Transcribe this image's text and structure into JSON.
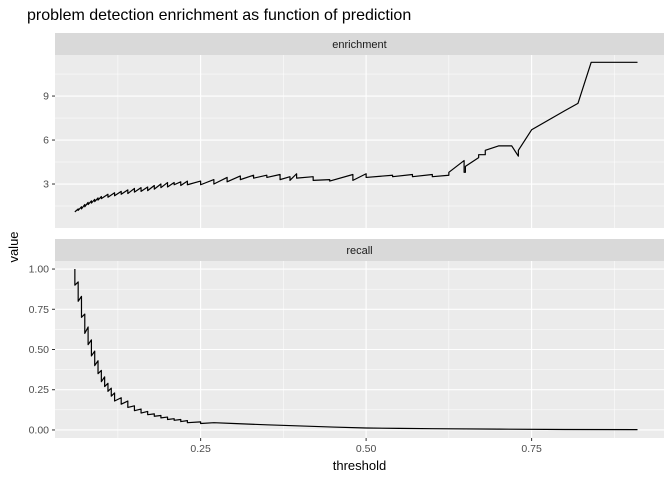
{
  "chart_data": {
    "type": "line",
    "title": "problem detection enrichment as function of prediction",
    "xlabel": "threshold",
    "ylabel": "value",
    "xlim": [
      0.03,
      0.95
    ],
    "x_ticks": [
      0.25,
      0.5,
      0.75
    ],
    "x_tick_labels": [
      "0.25",
      "0.50",
      "0.75"
    ],
    "grid": true,
    "panels": [
      {
        "strip": "enrichment",
        "ylim": [
          0.0,
          11.8
        ],
        "y_ticks": [
          3,
          6,
          9
        ],
        "y_tick_labels": [
          "3",
          "6",
          "9"
        ],
        "series": [
          {
            "x": [
              0.06,
              0.065,
              0.065,
              0.07,
              0.07,
              0.075,
              0.075,
              0.08,
              0.08,
              0.085,
              0.085,
              0.09,
              0.09,
              0.095,
              0.095,
              0.1,
              0.1,
              0.11,
              0.11,
              0.12,
              0.12,
              0.13,
              0.13,
              0.14,
              0.14,
              0.15,
              0.15,
              0.16,
              0.16,
              0.17,
              0.17,
              0.18,
              0.18,
              0.19,
              0.19,
              0.2,
              0.2,
              0.21,
              0.21,
              0.22,
              0.22,
              0.23,
              0.23,
              0.25,
              0.25,
              0.27,
              0.27,
              0.29,
              0.29,
              0.31,
              0.31,
              0.33,
              0.33,
              0.35,
              0.35,
              0.37,
              0.37,
              0.385,
              0.385,
              0.395,
              0.395,
              0.42,
              0.42,
              0.445,
              0.445,
              0.48,
              0.48,
              0.5,
              0.5,
              0.54,
              0.54,
              0.57,
              0.57,
              0.6,
              0.6,
              0.625,
              0.625,
              0.648,
              0.648,
              0.65,
              0.65,
              0.67,
              0.67,
              0.68,
              0.68,
              0.7,
              0.7,
              0.72,
              0.72,
              0.73,
              0.73,
              0.75,
              0.75,
              0.8,
              0.82,
              0.84,
              0.86,
              0.91
            ],
            "y": [
              1.1,
              1.3,
              1.2,
              1.45,
              1.3,
              1.6,
              1.45,
              1.75,
              1.6,
              1.85,
              1.7,
              1.95,
              1.8,
              2.05,
              1.9,
              2.15,
              2.0,
              2.3,
              2.1,
              2.4,
              2.2,
              2.5,
              2.3,
              2.6,
              2.35,
              2.7,
              2.45,
              2.75,
              2.5,
              2.8,
              2.55,
              2.9,
              2.65,
              3.0,
              2.75,
              3.1,
              2.8,
              3.1,
              2.95,
              3.15,
              2.9,
              3.2,
              2.95,
              3.2,
              2.95,
              3.3,
              3.0,
              3.45,
              3.15,
              3.55,
              3.3,
              3.6,
              3.4,
              3.6,
              3.45,
              3.65,
              3.3,
              3.5,
              3.25,
              3.7,
              3.4,
              3.5,
              3.25,
              3.3,
              3.2,
              3.65,
              3.25,
              3.7,
              3.45,
              3.6,
              3.5,
              3.65,
              3.5,
              3.65,
              3.5,
              3.6,
              3.8,
              4.6,
              3.8,
              3.8,
              4.2,
              4.8,
              5.0,
              5.0,
              5.3,
              5.6,
              5.6,
              5.6,
              5.6,
              4.9,
              5.3,
              6.7,
              6.7,
              8.0,
              8.5,
              11.3,
              11.3,
              11.3
            ]
          }
        ]
      },
      {
        "strip": "recall",
        "ylim": [
          -0.05,
          1.05
        ],
        "y_ticks": [
          0.0,
          0.25,
          0.5,
          0.75,
          1.0
        ],
        "y_tick_labels": [
          "0.00",
          "0.25",
          "0.50",
          "0.75",
          "1.00"
        ],
        "series": [
          {
            "x": [
              0.06,
              0.06,
              0.065,
              0.065,
              0.07,
              0.07,
              0.075,
              0.075,
              0.08,
              0.08,
              0.085,
              0.085,
              0.09,
              0.09,
              0.095,
              0.095,
              0.1,
              0.1,
              0.105,
              0.105,
              0.11,
              0.11,
              0.115,
              0.115,
              0.12,
              0.12,
              0.13,
              0.13,
              0.14,
              0.14,
              0.15,
              0.15,
              0.16,
              0.16,
              0.17,
              0.17,
              0.18,
              0.18,
              0.19,
              0.19,
              0.2,
              0.2,
              0.21,
              0.21,
              0.22,
              0.22,
              0.23,
              0.23,
              0.25,
              0.25,
              0.27,
              0.3,
              0.35,
              0.4,
              0.45,
              0.5,
              0.55,
              0.6,
              0.7,
              0.8,
              0.91
            ],
            "y": [
              1.0,
              0.9,
              0.92,
              0.8,
              0.83,
              0.7,
              0.72,
              0.6,
              0.64,
              0.53,
              0.56,
              0.46,
              0.49,
              0.4,
              0.43,
              0.35,
              0.37,
              0.3,
              0.33,
              0.27,
              0.29,
              0.24,
              0.26,
              0.21,
              0.23,
              0.18,
              0.2,
              0.16,
              0.18,
              0.14,
              0.15,
              0.12,
              0.13,
              0.105,
              0.115,
              0.095,
              0.1,
              0.085,
              0.09,
              0.075,
              0.08,
              0.065,
              0.07,
              0.06,
              0.065,
              0.052,
              0.058,
              0.045,
              0.05,
              0.04,
              0.045,
              0.04,
              0.032,
              0.025,
              0.018,
              0.012,
              0.01,
              0.008,
              0.005,
              0.003,
              0.002
            ]
          }
        ]
      }
    ]
  },
  "colors": {
    "panel_bg": "#ebebeb",
    "strip_bg": "#d9d9d9",
    "grid_major": "#ffffff",
    "line": "#000000"
  }
}
